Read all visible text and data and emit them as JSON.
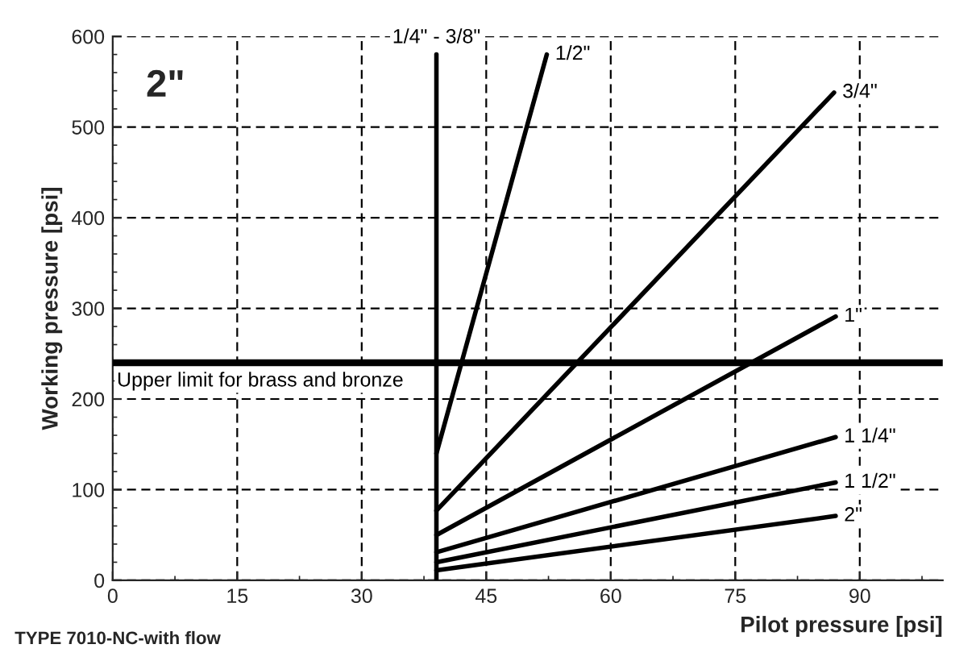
{
  "chart_data": {
    "type": "line",
    "xlabel": "Pilot pressure [psi]",
    "ylabel": "Working pressure [psi]",
    "xlim": [
      0,
      100
    ],
    "ylim": [
      0,
      600
    ],
    "xticks": [
      0,
      15,
      30,
      45,
      60,
      75,
      90
    ],
    "yticks": [
      0,
      100,
      200,
      300,
      400,
      500,
      600
    ],
    "grid": true,
    "line_style": "solid",
    "marker": "none",
    "series": [
      {
        "name": "1/4\" - 3/8\"",
        "color": "#000000",
        "x": [
          39,
          39
        ],
        "values": [
          0,
          580
        ]
      },
      {
        "name": "1/2\"",
        "color": "#000000",
        "x": [
          39,
          52.3
        ],
        "values": [
          140,
          580
        ]
      },
      {
        "name": "3/4\"",
        "color": "#000000",
        "x": [
          39,
          86.9
        ],
        "values": [
          77,
          538
        ]
      },
      {
        "name": "1\"",
        "color": "#000000",
        "x": [
          39,
          87.1
        ],
        "values": [
          50,
          291
        ]
      },
      {
        "name": "1 1/4\"",
        "color": "#000000",
        "x": [
          39,
          87.1
        ],
        "values": [
          31,
          158
        ]
      },
      {
        "name": "1 1/2\"",
        "color": "#000000",
        "x": [
          39,
          87.1
        ],
        "values": [
          20,
          108
        ]
      },
      {
        "name": "2\"",
        "color": "#000000",
        "x": [
          39,
          87.1
        ],
        "values": [
          11,
          71
        ]
      }
    ],
    "ref_lines": [
      {
        "axis": "y",
        "value": 240,
        "label": "Upper limit for brass and bronze",
        "color": "#000000"
      }
    ],
    "annotations": [
      "2\"",
      "TYPE 7010-NC-with flow"
    ]
  }
}
